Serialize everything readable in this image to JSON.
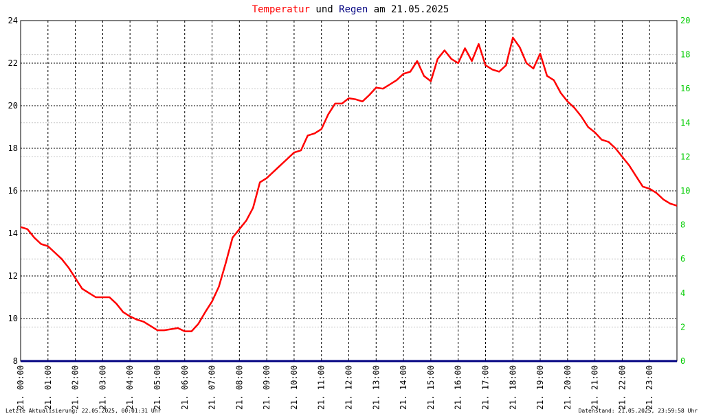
{
  "title": {
    "part1": "Temperatur",
    "part2": " und ",
    "part3": "Regen",
    "part4": " am 21.05.2025",
    "color_temp": "#ff0000",
    "color_rain": "#000080"
  },
  "footer": {
    "left": "Letzte Aktualisierung: 22.05.2025, 00:01:31 Uhr",
    "right": "Datenstand: 21.05.2025, 23:59:58 Uhr"
  },
  "chart_data": {
    "type": "line",
    "title": "Temperatur und Regen am 21.05.2025",
    "x_unit": "hour of day",
    "xlim": [
      0,
      24
    ],
    "x_tick_labels": [
      "21. 00:00",
      "21. 01:00",
      "21. 02:00",
      "21. 03:00",
      "21. 04:00",
      "21. 05:00",
      "21. 06:00",
      "21. 07:00",
      "21. 08:00",
      "21. 09:00",
      "21. 10:00",
      "21. 11:00",
      "21. 12:00",
      "21. 13:00",
      "21. 14:00",
      "21. 15:00",
      "21. 16:00",
      "21. 17:00",
      "21. 18:00",
      "21. 19:00",
      "21. 20:00",
      "21. 21:00",
      "21. 22:00",
      "21. 23:00"
    ],
    "y_left": {
      "ylim": [
        8,
        24
      ],
      "ticks": [
        8,
        10,
        12,
        14,
        16,
        18,
        20,
        22,
        24
      ]
    },
    "y_right": {
      "ylim": [
        0,
        20
      ],
      "ticks": [
        0,
        2,
        4,
        6,
        8,
        10,
        12,
        14,
        16,
        18,
        20
      ],
      "color": "#00cc00"
    },
    "grid": true,
    "series": [
      {
        "name": "Temperatur",
        "color": "#ff0000",
        "axis": "left",
        "x": [
          0,
          0.25,
          0.5,
          0.75,
          1,
          1.25,
          1.5,
          1.75,
          2,
          2.25,
          2.5,
          2.75,
          3,
          3.25,
          3.5,
          3.75,
          4,
          4.25,
          4.5,
          4.75,
          5,
          5.25,
          5.5,
          5.75,
          6,
          6.25,
          6.5,
          6.75,
          7,
          7.25,
          7.5,
          7.75,
          8,
          8.25,
          8.5,
          8.75,
          9,
          9.25,
          9.5,
          9.75,
          10,
          10.25,
          10.5,
          10.75,
          11,
          11.25,
          11.5,
          11.75,
          12,
          12.25,
          12.5,
          12.75,
          13,
          13.25,
          13.5,
          13.75,
          14,
          14.25,
          14.5,
          14.75,
          15,
          15.25,
          15.5,
          15.75,
          16,
          16.25,
          16.5,
          16.75,
          17,
          17.25,
          17.5,
          17.75,
          18,
          18.25,
          18.5,
          18.75,
          19,
          19.25,
          19.5,
          19.75,
          20,
          20.25,
          20.5,
          20.75,
          21,
          21.25,
          21.5,
          21.75,
          22,
          22.25,
          22.5,
          22.75,
          23,
          23.25,
          23.5,
          23.75,
          24
        ],
        "y": [
          14.3,
          14.2,
          13.8,
          13.5,
          13.4,
          13.1,
          12.8,
          12.4,
          11.9,
          11.4,
          11.2,
          11.0,
          11.0,
          11.0,
          10.7,
          10.3,
          10.1,
          9.95,
          9.85,
          9.65,
          9.45,
          9.45,
          9.5,
          9.55,
          9.4,
          9.4,
          9.75,
          10.3,
          10.8,
          11.5,
          12.6,
          13.8,
          14.2,
          14.6,
          15.2,
          16.4,
          16.6,
          16.9,
          17.2,
          17.5,
          17.8,
          17.9,
          18.6,
          18.7,
          18.9,
          19.6,
          20.1,
          20.1,
          20.35,
          20.3,
          20.2,
          20.5,
          20.85,
          20.8,
          21.0,
          21.2,
          21.5,
          21.6,
          22.1,
          21.4,
          21.15,
          22.2,
          22.6,
          22.2,
          22.0,
          22.7,
          22.1,
          22.9,
          21.9,
          21.7,
          21.6,
          21.9,
          23.2,
          22.75,
          22.0,
          21.75,
          22.45,
          21.4,
          21.2,
          20.6,
          20.2,
          19.9,
          19.5,
          19.0,
          18.75,
          18.4,
          18.3,
          18.0,
          17.6,
          17.2,
          16.7,
          16.2,
          16.1,
          15.9,
          15.6,
          15.4,
          15.3
        ],
        "note": ""
      },
      {
        "name": "Regen",
        "color": "#000080",
        "axis": "right",
        "x": [
          0,
          24
        ],
        "y": [
          0,
          0
        ]
      }
    ]
  }
}
